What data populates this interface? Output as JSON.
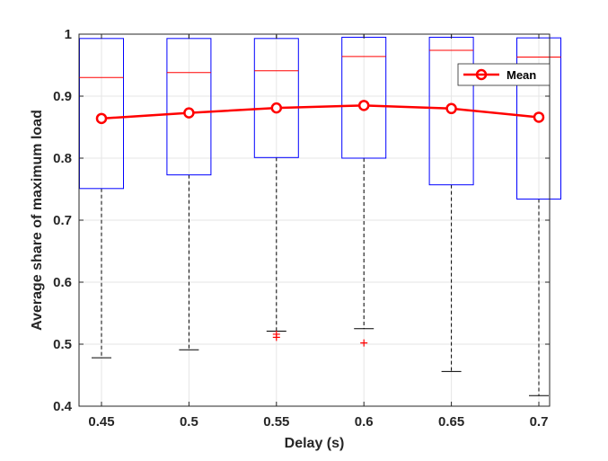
{
  "chart_data": {
    "type": "box",
    "xlabel": "Delay (s)",
    "ylabel": "Average share of maximum load",
    "ylim": [
      0.4,
      1.0
    ],
    "yticks": [
      "0.4",
      "0.5",
      "0.6",
      "0.7",
      "0.8",
      "0.9",
      "1"
    ],
    "categories": [
      "0.45",
      "0.5",
      "0.55",
      "0.6",
      "0.65",
      "0.7"
    ],
    "grid": true,
    "boxes": [
      {
        "q1": 0.751,
        "median": 0.93,
        "q3": 0.993,
        "whisker_low": 0.478,
        "whisker_high": 1.0,
        "outliers": []
      },
      {
        "q1": 0.773,
        "median": 0.938,
        "q3": 0.993,
        "whisker_low": 0.491,
        "whisker_high": 1.0,
        "outliers": []
      },
      {
        "q1": 0.801,
        "median": 0.941,
        "q3": 0.993,
        "whisker_low": 0.521,
        "whisker_high": 1.0,
        "outliers": [
          0.516,
          0.511
        ]
      },
      {
        "q1": 0.8,
        "median": 0.964,
        "q3": 0.995,
        "whisker_low": 0.525,
        "whisker_high": 1.0,
        "outliers": [
          0.502
        ]
      },
      {
        "q1": 0.757,
        "median": 0.974,
        "q3": 0.995,
        "whisker_low": 0.456,
        "whisker_high": 1.0,
        "outliers": []
      },
      {
        "q1": 0.734,
        "median": 0.963,
        "q3": 0.994,
        "whisker_low": 0.417,
        "whisker_high": 1.0,
        "outliers": []
      }
    ],
    "series": [
      {
        "name": "Mean",
        "values": [
          0.864,
          0.873,
          0.881,
          0.885,
          0.88,
          0.866
        ]
      }
    ],
    "legend_placement": "top-right",
    "colors": {
      "box": "#0000ff",
      "median": "#ff0000",
      "whisker": "#000000",
      "outlier": "#ff0000",
      "mean": "#ff0000",
      "grid": "#e6e6e6",
      "axes": "#262626"
    }
  }
}
